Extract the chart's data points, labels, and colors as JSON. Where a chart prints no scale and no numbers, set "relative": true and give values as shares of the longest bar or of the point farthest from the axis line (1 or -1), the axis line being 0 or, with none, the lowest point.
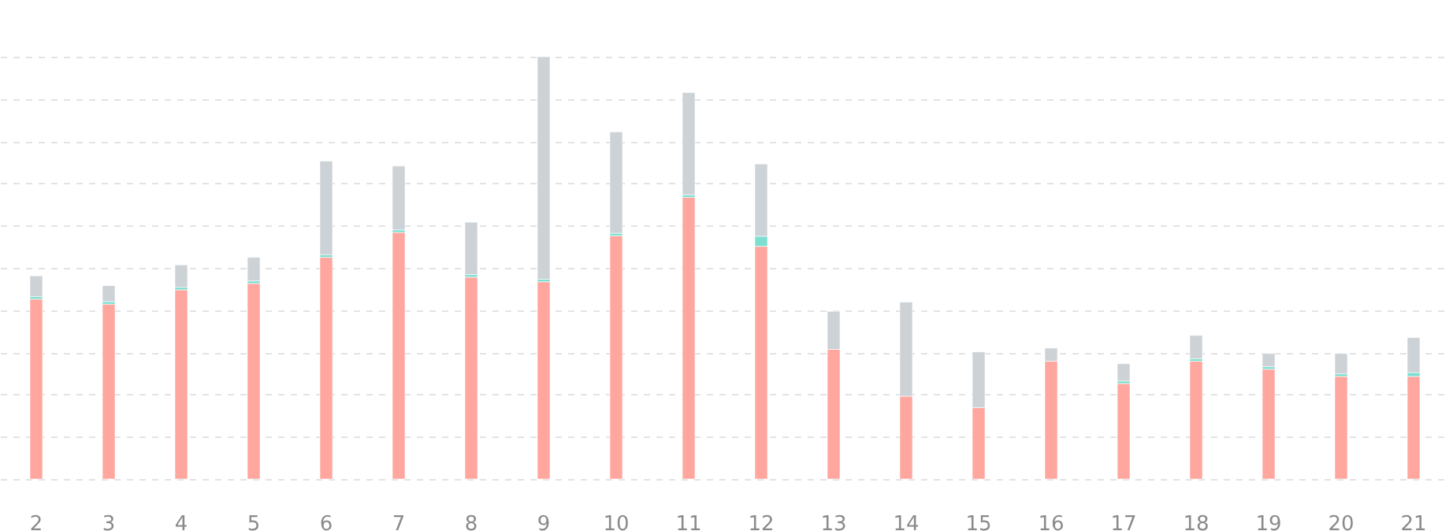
{
  "chart_data": {
    "type": "bar",
    "stacked": true,
    "relative": true,
    "grid": "y",
    "categories": [
      "2",
      "3",
      "4",
      "5",
      "6",
      "7",
      "8",
      "9",
      "10",
      "11",
      "12",
      "13",
      "14",
      "15",
      "16",
      "17",
      "18",
      "19",
      "20",
      "21"
    ],
    "series": [
      {
        "color": "#ffa69e",
        "values": [
          0.426,
          0.414,
          0.448,
          0.463,
          0.525,
          0.584,
          0.478,
          0.467,
          0.576,
          0.667,
          0.551,
          0.307,
          0.196,
          0.169,
          0.279,
          0.226,
          0.279,
          0.26,
          0.243,
          0.243
        ]
      },
      {
        "color": "#7ddfd0",
        "values": [
          0.006,
          0.006,
          0.006,
          0.006,
          0.006,
          0.006,
          0.006,
          0.006,
          0.006,
          0.006,
          0.024,
          null,
          null,
          null,
          null,
          0.006,
          0.006,
          0.006,
          0.006,
          0.009
        ]
      },
      {
        "color": "#cdd2d6",
        "values": [
          0.049,
          0.038,
          0.053,
          0.056,
          0.222,
          0.151,
          0.124,
          0.527,
          0.24,
          0.242,
          0.171,
          0.09,
          0.223,
          0.132,
          0.031,
          0.041,
          0.055,
          0.031,
          0.048,
          0.083
        ]
      }
    ]
  }
}
